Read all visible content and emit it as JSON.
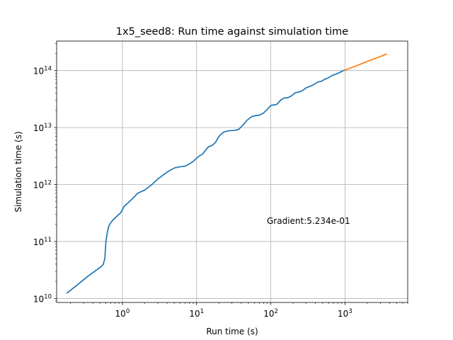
{
  "chart_data": {
    "type": "line",
    "title": "1x5_seed8: Run time against simulation time",
    "xlabel": "Run time (s)",
    "ylabel": "Simulation time (s)",
    "xscale": "log",
    "yscale": "log",
    "xlim": [
      0.13,
      7000
    ],
    "ylim": [
      8500000000.0,
      330000000000000.0
    ],
    "grid": true,
    "x_ticks": [
      {
        "value": 1,
        "base": "10",
        "exp": "0"
      },
      {
        "value": 10,
        "base": "10",
        "exp": "1"
      },
      {
        "value": 100,
        "base": "10",
        "exp": "2"
      },
      {
        "value": 1000,
        "base": "10",
        "exp": "3"
      }
    ],
    "y_ticks": [
      {
        "value": 10000000000.0,
        "base": "10",
        "exp": "10"
      },
      {
        "value": 100000000000.0,
        "base": "10",
        "exp": "11"
      },
      {
        "value": 1000000000000.0,
        "base": "10",
        "exp": "12"
      },
      {
        "value": 10000000000000.0,
        "base": "10",
        "exp": "13"
      },
      {
        "value": 100000000000000.0,
        "base": "10",
        "exp": "14"
      }
    ],
    "annotation": "Gradient:5.234e-01",
    "series": [
      {
        "color": "#1f77b4",
        "x": [
          0.18,
          0.25,
          0.35,
          0.5,
          0.55,
          0.58,
          0.6,
          0.63,
          0.66,
          0.7,
          0.75,
          0.85,
          0.95,
          1.0,
          1.05,
          1.2,
          1.4,
          1.6,
          2.0,
          2.5,
          3.0,
          3.5,
          4.0,
          5.0,
          6.0,
          7.0,
          8.0,
          9.0,
          10.0,
          11.0,
          12.0,
          13.0,
          14.5,
          16.0,
          18.0,
          20.0,
          23.0,
          27.0,
          32.0,
          37.0,
          42.0,
          48.0,
          55.0,
          62.0,
          70.0,
          80.0,
          90.0,
          100.0,
          110.0,
          120.0,
          135.0,
          150.0,
          170.0,
          190.0,
          215.0,
          240.0,
          270.0,
          300.0,
          340.0,
          380.0,
          430.0,
          480.0,
          540.0,
          600.0,
          680.0,
          760.0,
          850.0,
          950.0,
          1000.0
        ],
        "y": [
          12500000000.0,
          17500000000.0,
          25000000000.0,
          35000000000.0,
          39000000000.0,
          50000000000.0,
          100000000000.0,
          150000000000.0,
          190000000000.0,
          215000000000.0,
          240000000000.0,
          280000000000.0,
          320000000000.0,
          360000000000.0,
          410000000000.0,
          480000000000.0,
          580000000000.0,
          700000000000.0,
          800000000000.0,
          1000000000000.0,
          1250000000000.0,
          1450000000000.0,
          1650000000000.0,
          1950000000000.0,
          2050000000000.0,
          2100000000000.0,
          2300000000000.0,
          2550000000000.0,
          2900000000000.0,
          3200000000000.0,
          3400000000000.0,
          3900000000000.0,
          4600000000000.0,
          4800000000000.0,
          5500000000000.0,
          7000000000000.0,
          8300000000000.0,
          8800000000000.0,
          8900000000000.0,
          9300000000000.0,
          11000000000000.0,
          13500000000000.0,
          15500000000000.0,
          16200000000000.0,
          16500000000000.0,
          18000000000000.0,
          21000000000000.0,
          24500000000000.0,
          25000000000000.0,
          25500000000000.0,
          30000000000000.0,
          33000000000000.0,
          33500000000000.0,
          36000000000000.0,
          41000000000000.0,
          42000000000000.0,
          45000000000000.0,
          50000000000000.0,
          53000000000000.0,
          57000000000000.0,
          63000000000000.0,
          65000000000000.0,
          71000000000000.0,
          75000000000000.0,
          83000000000000.0,
          87000000000000.0,
          93000000000000.0,
          100000000000000.0,
          102000000000000.0
        ]
      },
      {
        "color": "#ff7f0e",
        "x": [
          1000,
          1500,
          2000,
          2600,
          3100,
          3600
        ],
        "y": [
          102000000000000.0,
          125000000000000.0,
          145000000000000.0,
          165000000000000.0,
          180000000000000.0,
          195000000000000.0
        ]
      }
    ]
  }
}
